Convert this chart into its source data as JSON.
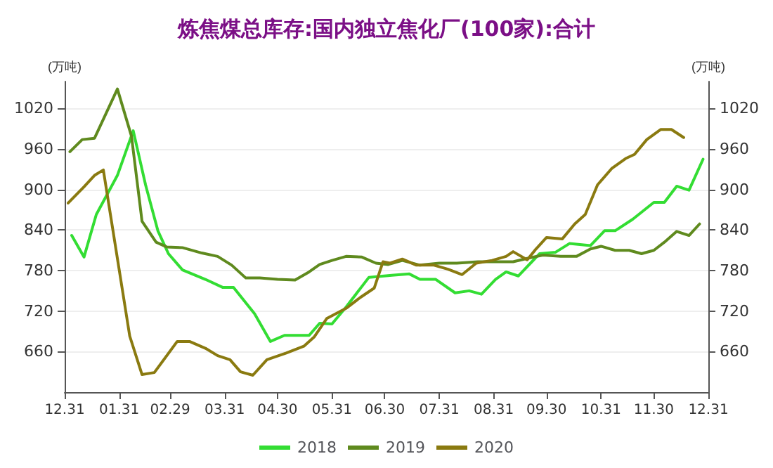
{
  "chart_data": {
    "type": "line",
    "title": "炼焦煤总库存:国内独立焦化厂(100家):合计",
    "ylabel": "(万吨)",
    "y2label": "(万吨)",
    "xlim": [
      "2019-12-31",
      "2020-12-31"
    ],
    "xticks": [
      {
        "value": "2019-12-31",
        "label": "12.31"
      },
      {
        "value": "2020-01-31",
        "label": "01.31"
      },
      {
        "value": "2020-02-29",
        "label": "02.29"
      },
      {
        "value": "2020-03-31",
        "label": "03.31"
      },
      {
        "value": "2020-04-30",
        "label": "04.30"
      },
      {
        "value": "2020-05-31",
        "label": "05.31"
      },
      {
        "value": "2020-06-30",
        "label": "06.30"
      },
      {
        "value": "2020-07-31",
        "label": "07.31"
      },
      {
        "value": "2020-08-31",
        "label": "08.31"
      },
      {
        "value": "2020-09-30",
        "label": "09.30"
      },
      {
        "value": "2020-10-31",
        "label": "10.31"
      },
      {
        "value": "2020-11-30",
        "label": "11.30"
      },
      {
        "value": "2020-12-31",
        "label": "12.31"
      }
    ],
    "ylim": [
      600,
      1060
    ],
    "yticks": [
      660,
      720,
      780,
      840,
      900,
      960,
      1020
    ],
    "y2lim": [
      600,
      1060
    ],
    "y2ticks": [
      660,
      720,
      780,
      840,
      900,
      960,
      1020
    ],
    "grid": "y",
    "legend": "bottom",
    "marker": "none",
    "line_style": "solid",
    "series": [
      {
        "name": "2018",
        "color": "#33dd33",
        "x": [
          "2020-01-04",
          "2020-01-11",
          "2020-01-18",
          "2020-01-30",
          "2020-02-08",
          "2020-02-15",
          "2020-02-22",
          "2020-02-28",
          "2020-03-07",
          "2020-03-20",
          "2020-03-30",
          "2020-04-05",
          "2020-04-17",
          "2020-04-26",
          "2020-05-04",
          "2020-05-18",
          "2020-05-24",
          "2020-05-31",
          "2020-06-08",
          "2020-06-21",
          "2020-07-04",
          "2020-07-14",
          "2020-07-20",
          "2020-07-29",
          "2020-08-09",
          "2020-08-17",
          "2020-08-24",
          "2020-09-01",
          "2020-09-07",
          "2020-09-14",
          "2020-09-26",
          "2020-10-05",
          "2020-10-13",
          "2020-10-25",
          "2020-11-02",
          "2020-11-08",
          "2020-11-18",
          "2020-11-30",
          "2020-12-06",
          "2020-12-13",
          "2020-12-20",
          "2020-12-28"
        ],
        "values": [
          832,
          800,
          863,
          921,
          987,
          907,
          839,
          805,
          781,
          767,
          755,
          755,
          716,
          675,
          684,
          684,
          702,
          701,
          726,
          770,
          773,
          775,
          767,
          767,
          747,
          750,
          745,
          767,
          778,
          772,
          805,
          807,
          820,
          817,
          839,
          839,
          856,
          881,
          881,
          905,
          899,
          945
        ]
      },
      {
        "name": "2019",
        "color": "#5f8a1e",
        "x": [
          "2020-01-03",
          "2020-01-10",
          "2020-01-17",
          "2020-01-30",
          "2020-02-07",
          "2020-02-13",
          "2020-02-21",
          "2020-02-27",
          "2020-03-07",
          "2020-03-18",
          "2020-03-27",
          "2020-04-04",
          "2020-04-12",
          "2020-04-20",
          "2020-04-30",
          "2020-05-10",
          "2020-05-18",
          "2020-05-24",
          "2020-05-31",
          "2020-06-08",
          "2020-06-17",
          "2020-06-25",
          "2020-07-02",
          "2020-07-10",
          "2020-07-20",
          "2020-07-31",
          "2020-08-10",
          "2020-08-22",
          "2020-09-01",
          "2020-09-11",
          "2020-09-19",
          "2020-09-28",
          "2020-10-08",
          "2020-10-17",
          "2020-10-25",
          "2020-10-31",
          "2020-11-08",
          "2020-11-16",
          "2020-11-23",
          "2020-11-30",
          "2020-12-06",
          "2020-12-13",
          "2020-12-20",
          "2020-12-26"
        ],
        "values": [
          956,
          974,
          976,
          1049,
          979,
          853,
          822,
          815,
          814,
          806,
          801,
          788,
          769,
          769,
          767,
          766,
          778,
          789,
          795,
          801,
          800,
          791,
          789,
          795,
          788,
          791,
          791,
          793,
          793,
          793,
          798,
          803,
          801,
          801,
          812,
          816,
          810,
          810,
          805,
          810,
          822,
          838,
          832,
          849
        ]
      },
      {
        "name": "2020",
        "color": "#8a7a10",
        "x": [
          "2020-01-02",
          "2020-01-11",
          "2020-01-17",
          "2020-01-22",
          "2020-02-06",
          "2020-02-13",
          "2020-02-20",
          "2020-03-04",
          "2020-03-11",
          "2020-03-20",
          "2020-03-27",
          "2020-04-03",
          "2020-04-09",
          "2020-04-16",
          "2020-04-24",
          "2020-05-05",
          "2020-05-15",
          "2020-05-21",
          "2020-05-28",
          "2020-06-08",
          "2020-06-16",
          "2020-06-24",
          "2020-06-29",
          "2020-07-03",
          "2020-07-10",
          "2020-07-18",
          "2020-07-28",
          "2020-08-05",
          "2020-08-13",
          "2020-08-21",
          "2020-08-30",
          "2020-09-07",
          "2020-09-11",
          "2020-09-19",
          "2020-09-24",
          "2020-09-30",
          "2020-10-09",
          "2020-10-16",
          "2020-10-22",
          "2020-10-29",
          "2020-11-06",
          "2020-11-14",
          "2020-11-19",
          "2020-11-26",
          "2020-12-04",
          "2020-12-10",
          "2020-12-17"
        ],
        "values": [
          880,
          904,
          921,
          929,
          683,
          626,
          629,
          675,
          675,
          665,
          654,
          648,
          630,
          625,
          648,
          658,
          668,
          682,
          709,
          724,
          740,
          754,
          793,
          791,
          797,
          788,
          788,
          782,
          774,
          791,
          795,
          801,
          808,
          796,
          812,
          829,
          827,
          849,
          863,
          907,
          931,
          946,
          952,
          974,
          989,
          989,
          977
        ]
      }
    ]
  }
}
